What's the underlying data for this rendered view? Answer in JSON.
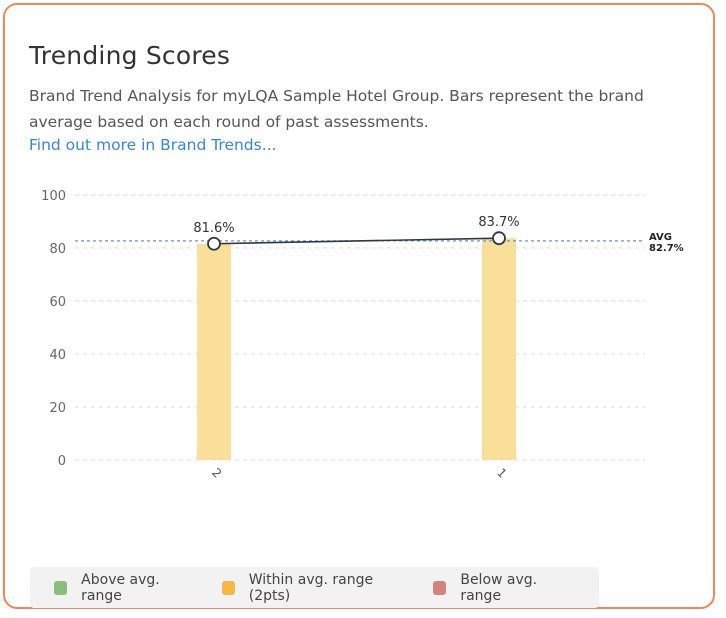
{
  "card": {
    "title": "Trending Scores",
    "description": "Brand Trend Analysis for myLQA Sample Hotel Group. Bars represent the brand average based on each round of past assessments.",
    "link_text": "Find out more in Brand Trends..."
  },
  "chart_data": {
    "type": "bar",
    "categories": [
      "2",
      "1"
    ],
    "values": [
      81.6,
      83.7
    ],
    "value_labels": [
      "81.6%",
      "83.7%"
    ],
    "ylim": [
      0,
      100
    ],
    "yticks": [
      0,
      20,
      40,
      60,
      80,
      100
    ],
    "average": {
      "value": 82.7,
      "label": "AVG",
      "value_label": "82.7%"
    },
    "bar_color": "#fadf9b",
    "line_color": "#2c3a44",
    "avg_line_color": "#6a93c6",
    "grid": true
  },
  "legend": {
    "items": [
      {
        "label": "Above avg. range",
        "color": "#8cbd7e"
      },
      {
        "label": "Within avg. range (2pts)",
        "color": "#f5b942"
      },
      {
        "label": "Below avg. range",
        "color": "#d2847b"
      }
    ]
  }
}
